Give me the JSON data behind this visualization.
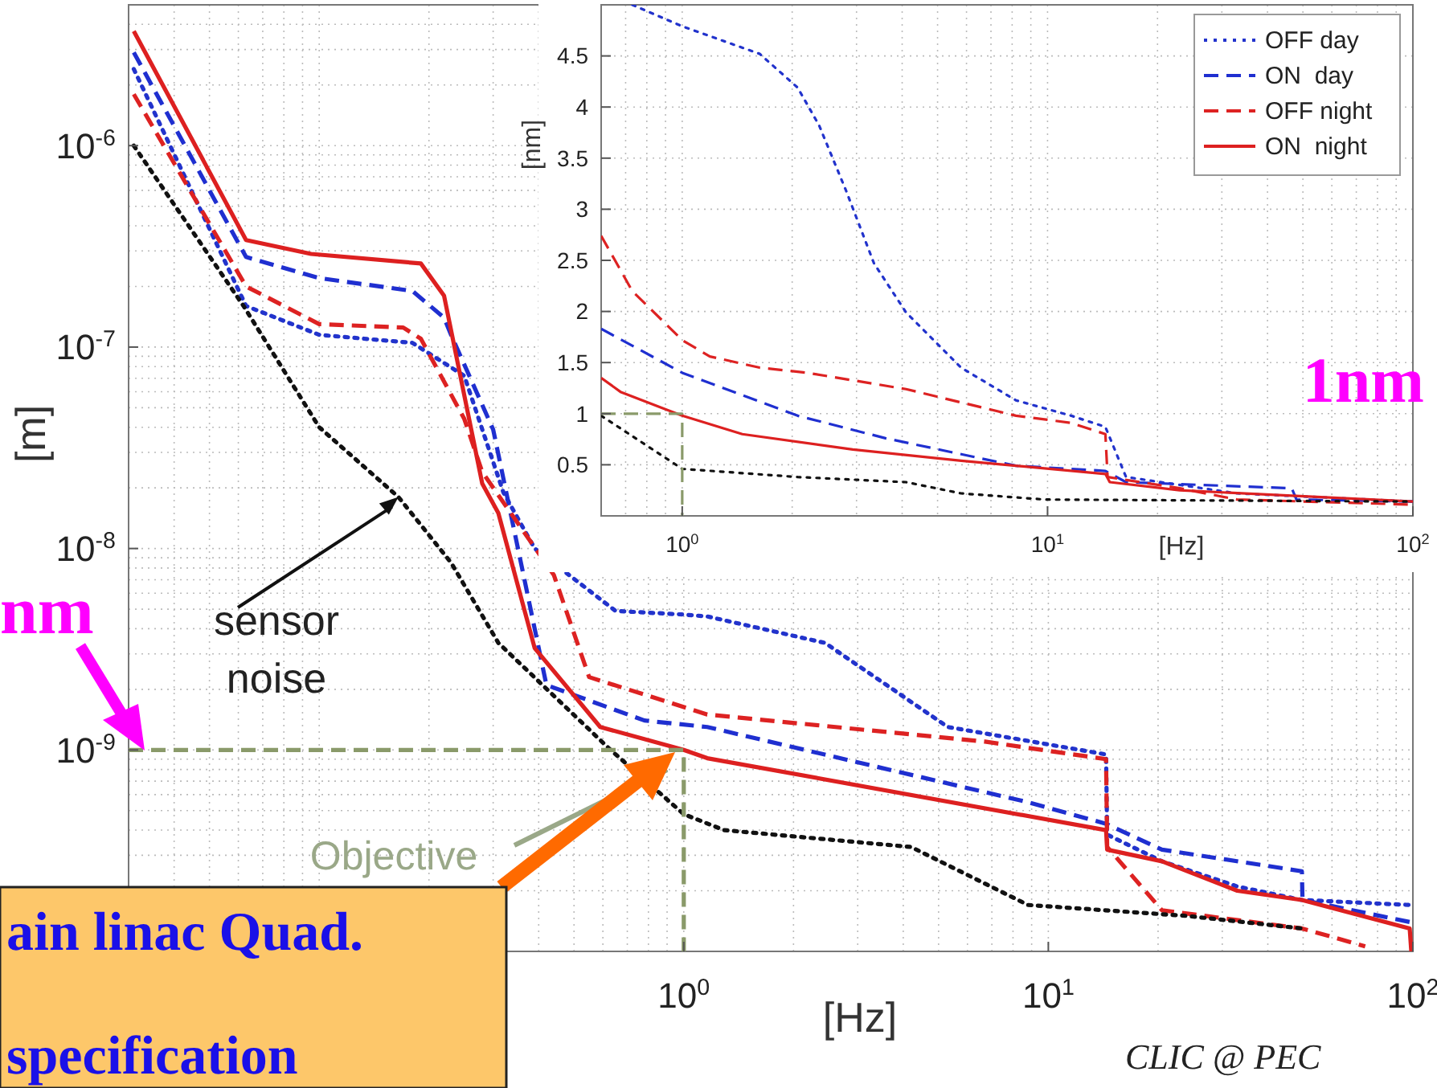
{
  "chart_data": [
    {
      "type": "line",
      "xlabel": "[Hz]",
      "ylabel": "[m]",
      "log": "xy",
      "grid": true,
      "xlim": [
        0.03,
        100
      ],
      "ylim": [
        1e-10,
        5e-06
      ],
      "xticks": [
        {
          "value": 1,
          "label": "10$^{0}$"
        },
        {
          "value": 10,
          "label": "10$^{1}$"
        },
        {
          "value": 100,
          "label": "10$^{2}$"
        }
      ],
      "yticks": [
        {
          "value": 1e-09,
          "label": "10$^{-9}$"
        },
        {
          "value": 1e-08,
          "label": "10$^{-8}$"
        },
        {
          "value": 1e-07,
          "label": "10$^{-7}$"
        },
        {
          "value": 1e-06,
          "label": "10$^{-6}$"
        }
      ],
      "series": [
        {
          "color": "#2233cc",
          "line_style": "dotted",
          "x": [
            0.031,
            0.063,
            0.1,
            0.18,
            0.25,
            0.32,
            0.39,
            0.65,
            1.0,
            1.16,
            2.44,
            5.3,
            14.4,
            14.5,
            20.5,
            33,
            49.6,
            98
          ],
          "values": [
            2.4e-06,
            1.6e-07,
            1.15e-07,
            1.05e-07,
            7.2e-08,
            1.9e-08,
            1e-08,
            4.9e-09,
            4.7e-09,
            4.6e-09,
            3.4e-09,
            1.3e-09,
            9.5e-10,
            3.8e-10,
            2.8e-10,
            2.1e-10,
            1.8e-10,
            1.7e-10
          ]
        },
        {
          "color": "#1f2fd0",
          "line_style": "dashed",
          "x": [
            0.031,
            0.063,
            0.1,
            0.18,
            0.22,
            0.23,
            0.3,
            0.42,
            0.78,
            1.16,
            8.8,
            14.4,
            20.5,
            49.6,
            49.8,
            98
          ],
          "values": [
            2.9e-06,
            2.8e-07,
            2.2e-07,
            1.9e-07,
            1.4e-07,
            1.15e-07,
            3.9e-08,
            2.1e-09,
            1.4e-09,
            1.3e-09,
            5.5e-10,
            4.3e-10,
            3.2e-10,
            2.5e-10,
            1.8e-10,
            1.4e-10
          ]
        },
        {
          "color": "#dd2222",
          "line_style": "dashed",
          "x": [
            0.031,
            0.063,
            0.1,
            0.17,
            0.19,
            0.25,
            0.28,
            0.44,
            0.55,
            1.16,
            6.7,
            14.4,
            14.5,
            20.5,
            49.6,
            74
          ],
          "values": [
            1.8e-06,
            2e-07,
            1.3e-07,
            1.25e-07,
            1.1e-07,
            4.4e-08,
            2.4e-08,
            7.4e-09,
            2.3e-09,
            1.5e-09,
            1.1e-09,
            9e-10,
            3.3e-10,
            1.6e-10,
            1.3e-10,
            1.06e-10
          ]
        },
        {
          "color": "#dd2020",
          "line_style": "solid",
          "x": [
            0.031,
            0.063,
            0.095,
            0.19,
            0.22,
            0.28,
            0.31,
            0.39,
            0.59,
            1.0,
            1.16,
            14.4,
            14.5,
            20.5,
            33,
            49.6,
            98,
            99
          ],
          "values": [
            3.7e-06,
            3.4e-07,
            2.9e-07,
            2.6e-07,
            1.8e-07,
            2.1e-08,
            1.5e-08,
            3.2e-09,
            1.3e-09,
            1e-09,
            9.1e-10,
            4e-10,
            3.2e-10,
            2.8e-10,
            2e-10,
            1.8e-10,
            1.3e-10,
            1e-10
          ]
        },
        {
          "color": "#111111",
          "line_style": "dotted",
          "x": [
            0.031,
            0.062,
            0.1,
            0.165,
            0.23,
            0.31,
            0.63,
            1.0,
            1.29,
            4.2,
            8.8,
            24,
            49.6
          ],
          "values": [
            1e-06,
            1.6e-07,
            4e-08,
            1.8e-08,
            8.5e-09,
            3.4e-09,
            1e-09,
            4.8e-10,
            4e-10,
            3.3e-10,
            1.7e-10,
            1.5e-10,
            1.3e-10
          ]
        },
        {
          "color": "#8a9a6a",
          "line_style": "dashed",
          "x": [
            0.03,
            1,
            1
          ],
          "values": [
            1e-09,
            1e-09,
            1e-10
          ]
        }
      ],
      "annotations": [
        {
          "text": "sensor noise",
          "x": 0.165,
          "y": 1.8e-08
        },
        "Objective",
        "nm",
        "1nm",
        "ain linac Quad.",
        "specification",
        "CLIC @ PEC"
      ]
    },
    {
      "type": "line",
      "xlabel": "[Hz]",
      "ylabel": "[nm]",
      "log": "x",
      "grid": true,
      "legend": "top right",
      "xlim": [
        0.6,
        100
      ],
      "ylim": [
        0,
        5
      ],
      "xticks": [
        {
          "value": 1,
          "label": "10$^{0}$"
        },
        {
          "value": 10,
          "label": "10$^{1}$"
        },
        {
          "value": 100,
          "label": "10$^{2}$"
        }
      ],
      "yticks": [
        0.5,
        1,
        1.5,
        2,
        2.5,
        3,
        3.5,
        4,
        4.5
      ],
      "series": [
        {
          "name": "OFF day",
          "color": "#2233cc",
          "line_style": "dotted",
          "x": [
            0.73,
            1.0,
            1.63,
            2.07,
            2.37,
            2.81,
            3.35,
            4.1,
            5.8,
            8.2,
            11.6,
            14.4,
            16.4,
            33,
            100
          ],
          "values": [
            5.0,
            4.79,
            4.52,
            4.19,
            3.82,
            3.18,
            2.47,
            1.99,
            1.45,
            1.13,
            0.98,
            0.87,
            0.38,
            0.22,
            0.14
          ]
        },
        {
          "name": "ON  day",
          "color": "#1f2fd0",
          "line_style": "dashed",
          "x": [
            0.6,
            1,
            2.07,
            3.6,
            8.2,
            14.4,
            16.4,
            46.6,
            48,
            100
          ],
          "values": [
            1.83,
            1.4,
            0.98,
            0.76,
            0.49,
            0.44,
            0.33,
            0.27,
            0.16,
            0.14
          ]
        },
        {
          "name": "OFF night",
          "color": "#dd2222",
          "line_style": "dashed",
          "x": [
            0.6,
            0.73,
            1,
            1.19,
            1.63,
            2.2,
            4.1,
            8.2,
            11.6,
            14.4,
            14.6,
            23,
            33,
            100
          ],
          "values": [
            2.74,
            2.2,
            1.72,
            1.56,
            1.45,
            1.4,
            1.24,
            0.98,
            0.91,
            0.8,
            0.38,
            0.27,
            0.16,
            0.11
          ]
        },
        {
          "name": "ON  night",
          "color": "#dd2020",
          "line_style": "solid",
          "x": [
            0.6,
            0.68,
            1,
            1.46,
            2.93,
            5.8,
            14.4,
            14.8,
            23,
            100
          ],
          "values": [
            1.35,
            1.21,
            0.98,
            0.8,
            0.65,
            0.54,
            0.41,
            0.33,
            0.25,
            0.14
          ]
        },
        {
          "color": "#111111",
          "line_style": "dotted",
          "x": [
            0.6,
            1,
            2.07,
            4.1,
            5.8,
            9.8,
            100
          ],
          "values": [
            0.98,
            0.46,
            0.38,
            0.33,
            0.22,
            0.16,
            0.14
          ]
        },
        {
          "color": "#8a9a6a",
          "line_style": "dashed",
          "x": [
            0.6,
            1,
            1
          ],
          "values": [
            1,
            1,
            0
          ]
        }
      ]
    }
  ]
}
